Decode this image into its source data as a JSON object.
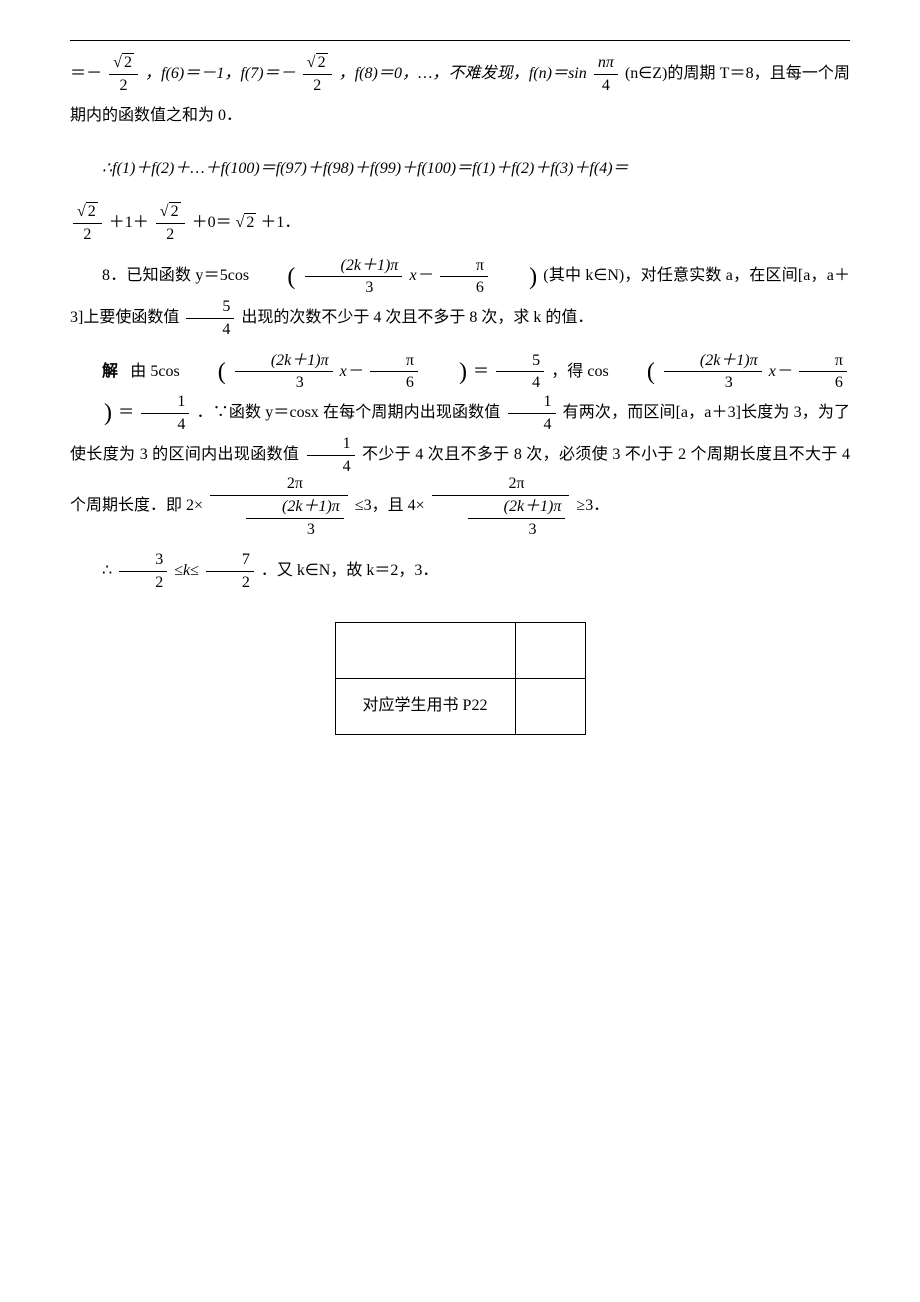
{
  "line1": {
    "prefix": "＝－",
    "frac1_num": "2",
    "frac1_den": "2",
    "f6": "，f(6)＝－1，f(7)＝－",
    "frac2_num": "2",
    "frac2_den": "2",
    "f8": "，f(8)＝0，…，不难发现，f(n)＝sin",
    "frac3_num": "nπ",
    "frac3_den": "4",
    "suffix": "(n∈Z)的周期 T＝8，且每一个周期内的函数值之和为 0．"
  },
  "line2": {
    "text": "∴f(1)＋f(2)＋…＋f(100)＝f(97)＋f(98)＋f(99)＋f(100)＝f(1)＋f(2)＋f(3)＋f(4)＝"
  },
  "line3": {
    "frac1_num": "2",
    "frac1_den": "2",
    "mid1": "＋1＋",
    "frac2_num": "2",
    "frac2_den": "2",
    "mid2": "＋0＝",
    "result_inner": "2",
    "result_suffix": "＋1．"
  },
  "problem8": {
    "label": "8．已知函数 y＝5cos",
    "arg_num": "(2k＋1)π",
    "arg_den": "3",
    "mid1": "x－",
    "frac_num": "π",
    "frac_den": "6",
    "mid2": "(其中 k∈N)，对任意实数 a，在区间[a，a＋3]上要使函数值",
    "val_num": "5",
    "val_den": "4",
    "suffix": "出现的次数不少于 4 次且不多于 8 次，求 k 的值．"
  },
  "solution": {
    "label": "解",
    "text1": "由 5cos",
    "arg1_num": "(2k＋1)π",
    "arg1_den": "3",
    "mid1": "x－",
    "pi1_num": "π",
    "pi1_den": "6",
    "eq1": "＝",
    "v1_num": "5",
    "v1_den": "4",
    "text2": "，得 cos",
    "arg2_num": "(2k＋1)π",
    "arg2_den": "3",
    "mid2": "x－",
    "pi2_num": "π",
    "pi2_den": "6",
    "eq2": "＝",
    "v2_num": "1",
    "v2_den": "4",
    "text3": "．∵函数 y＝cosx 在每个周期内出现函数值",
    "v3_num": "1",
    "v3_den": "4",
    "text4": "有两次，而区间[a，a＋3]长度为 3，为了使长度为 3 的区间内出现函数值",
    "v4_num": "1",
    "v4_den": "4",
    "text5": "不少于 4 次且不多于 8 次，必须使 3 不小于 2 个周期长度且不大于 4 个周期长度．即 2×",
    "period_num": "2π",
    "period_inner_num": "(2k＋1)π",
    "period_inner_den": "3",
    "text6": "≤3，且 4×",
    "text7": "≥3．"
  },
  "conclusion": {
    "prefix": "∴",
    "lo_num": "3",
    "lo_den": "2",
    "mid1": "≤k≤",
    "hi_num": "7",
    "hi_den": "2",
    "suffix": "．又 k∈N，故 k＝2，3．"
  },
  "table": {
    "label": "对应学生用书 P22"
  }
}
